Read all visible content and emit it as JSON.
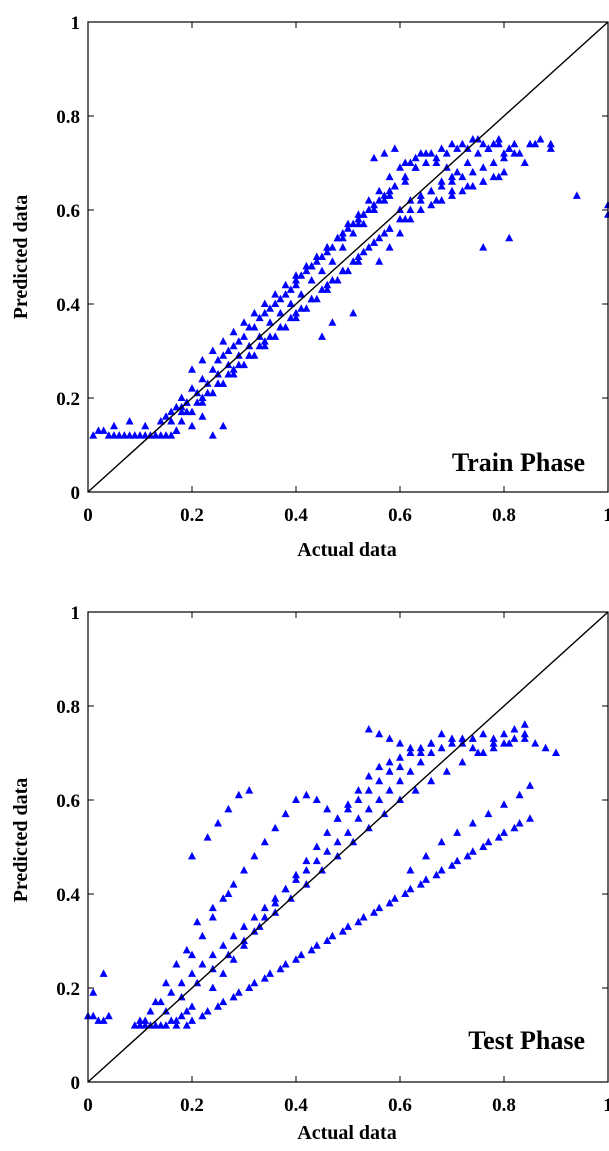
{
  "chart_data": [
    {
      "type": "scatter",
      "annotation": "Train Phase",
      "xlabel": "Actual data",
      "ylabel": "Predicted data",
      "xlim": [
        0,
        1
      ],
      "ylim": [
        0,
        1
      ],
      "xticks": [
        "0",
        "0.2",
        "0.4",
        "0.6",
        "0.8",
        "1"
      ],
      "yticks": [
        "0",
        "0.2",
        "0.4",
        "0.6",
        "0.8",
        "1"
      ],
      "marker": "triangle",
      "reference_line": [
        [
          0,
          0
        ],
        [
          1,
          1
        ]
      ],
      "colors": {
        "points": "#0000ff",
        "line": "#000000"
      },
      "grid": false,
      "series": [
        {
          "x": [
            0.01,
            0.02,
            0.03,
            0.04,
            0.05,
            0.06,
            0.07,
            0.08,
            0.09,
            0.1,
            0.11,
            0.12,
            0.13,
            0.14,
            0.15,
            0.16,
            0.05,
            0.08,
            0.11,
            0.14,
            0.15,
            0.16,
            0.17,
            0.17,
            0.18,
            0.18,
            0.19,
            0.2,
            0.2,
            0.21,
            0.22,
            0.22,
            0.23,
            0.24,
            0.24,
            0.25,
            0.26,
            0.26,
            0.27,
            0.28,
            0.28,
            0.29,
            0.3,
            0.3,
            0.31,
            0.32,
            0.32,
            0.33,
            0.34,
            0.34,
            0.35,
            0.36,
            0.36,
            0.37,
            0.38,
            0.38,
            0.39,
            0.4,
            0.4,
            0.41,
            0.42,
            0.42,
            0.43,
            0.44,
            0.44,
            0.45,
            0.46,
            0.46,
            0.47,
            0.48,
            0.48,
            0.49,
            0.5,
            0.5,
            0.51,
            0.52,
            0.52,
            0.53,
            0.54,
            0.54,
            0.55,
            0.56,
            0.56,
            0.57,
            0.58,
            0.58,
            0.59,
            0.6,
            0.6,
            0.61,
            0.62,
            0.62,
            0.63,
            0.64,
            0.64,
            0.65,
            0.66,
            0.66,
            0.67,
            0.68,
            0.68,
            0.69,
            0.7,
            0.7,
            0.71,
            0.72,
            0.73,
            0.74,
            0.75,
            0.76,
            0.77,
            0.78,
            0.79,
            0.8,
            0.81,
            0.82,
            0.6,
            0.62,
            0.64,
            0.66,
            0.68,
            0.7,
            0.72,
            0.74,
            0.76,
            0.78,
            0.8,
            0.82,
            0.55,
            0.57,
            0.59,
            0.61,
            0.63,
            0.65,
            0.67,
            0.69,
            0.71,
            0.73,
            0.75,
            0.77,
            0.79,
            0.81,
            0.83,
            0.85,
            0.87,
            0.89,
            0.2,
            0.22,
            0.24,
            0.26,
            0.28,
            0.3,
            0.32,
            0.34,
            0.36,
            0.38,
            0.4,
            0.42,
            0.44,
            0.46,
            0.48,
            0.5,
            0.52,
            0.54,
            0.56,
            0.58,
            0.22,
            0.25,
            0.28,
            0.31,
            0.34,
            0.37,
            0.4,
            0.43,
            0.46,
            0.49,
            0.52,
            0.55,
            0.58,
            0.61,
            0.64,
            0.67,
            0.7,
            0.73,
            0.76,
            0.79,
            0.25,
            0.27,
            0.29,
            0.31,
            0.33,
            0.35,
            0.37,
            0.39,
            0.41,
            0.43,
            0.45,
            0.47,
            0.49,
            0.51,
            0.53,
            0.55,
            0.57,
            0.59,
            0.61,
            0.63,
            0.19,
            0.21,
            0.23,
            0.25,
            0.27,
            0.29,
            0.31,
            0.33,
            0.35,
            0.37,
            0.39,
            0.41,
            0.43,
            0.45,
            0.47,
            0.49,
            0.51,
            0.53,
            0.55,
            0.57,
            0.56,
            0.58,
            0.6,
            0.62,
            0.64,
            0.66,
            0.68,
            0.7,
            0.72,
            0.74,
            0.76,
            0.78,
            0.8,
            0.84,
            0.86,
            0.89,
            0.94,
            1.0,
            1.0,
            0.81,
            0.76,
            0.53,
            0.45,
            0.47,
            0.51,
            0.18,
            0.2,
            0.22,
            0.24,
            0.26,
            0.16,
            0.17,
            0.18,
            0.19,
            0.4,
            0.43,
            0.46,
            0.49,
            0.52,
            0.55,
            0.58,
            0.61
          ],
          "y": [
            0.12,
            0.13,
            0.13,
            0.12,
            0.12,
            0.12,
            0.12,
            0.12,
            0.12,
            0.12,
            0.12,
            0.12,
            0.12,
            0.12,
            0.12,
            0.12,
            0.14,
            0.15,
            0.14,
            0.15,
            0.16,
            0.17,
            0.18,
            0.13,
            0.2,
            0.15,
            0.19,
            0.22,
            0.17,
            0.21,
            0.24,
            0.19,
            0.23,
            0.26,
            0.21,
            0.25,
            0.29,
            0.23,
            0.27,
            0.31,
            0.25,
            0.29,
            0.33,
            0.27,
            0.31,
            0.35,
            0.29,
            0.33,
            0.38,
            0.31,
            0.36,
            0.4,
            0.33,
            0.38,
            0.42,
            0.35,
            0.4,
            0.44,
            0.37,
            0.42,
            0.47,
            0.39,
            0.45,
            0.49,
            0.41,
            0.47,
            0.52,
            0.43,
            0.49,
            0.54,
            0.45,
            0.52,
            0.57,
            0.47,
            0.55,
            0.59,
            0.49,
            0.57,
            0.62,
            0.52,
            0.6,
            0.64,
            0.54,
            0.62,
            0.67,
            0.56,
            0.65,
            0.69,
            0.58,
            0.67,
            0.7,
            0.6,
            0.69,
            0.72,
            0.62,
            0.7,
            0.72,
            0.64,
            0.71,
            0.73,
            0.66,
            0.72,
            0.74,
            0.67,
            0.73,
            0.74,
            0.73,
            0.75,
            0.75,
            0.74,
            0.73,
            0.74,
            0.75,
            0.72,
            0.73,
            0.74,
            0.6,
            0.62,
            0.63,
            0.64,
            0.65,
            0.66,
            0.67,
            0.68,
            0.69,
            0.7,
            0.71,
            0.72,
            0.71,
            0.72,
            0.73,
            0.7,
            0.71,
            0.72,
            0.7,
            0.69,
            0.68,
            0.7,
            0.72,
            0.73,
            0.74,
            0.73,
            0.72,
            0.74,
            0.75,
            0.73,
            0.26,
            0.28,
            0.3,
            0.32,
            0.34,
            0.36,
            0.38,
            0.4,
            0.42,
            0.44,
            0.46,
            0.48,
            0.5,
            0.52,
            0.54,
            0.56,
            0.58,
            0.6,
            0.62,
            0.64,
            0.2,
            0.23,
            0.26,
            0.29,
            0.32,
            0.35,
            0.38,
            0.41,
            0.44,
            0.47,
            0.5,
            0.53,
            0.56,
            0.58,
            0.6,
            0.62,
            0.64,
            0.65,
            0.66,
            0.67,
            0.28,
            0.3,
            0.32,
            0.35,
            0.37,
            0.39,
            0.41,
            0.43,
            0.46,
            0.48,
            0.5,
            0.52,
            0.55,
            0.57,
            0.59,
            0.61,
            0.63,
            0.65,
            0.67,
            0.69,
            0.17,
            0.19,
            0.21,
            0.23,
            0.25,
            0.27,
            0.29,
            0.31,
            0.33,
            0.35,
            0.37,
            0.39,
            0.41,
            0.43,
            0.45,
            0.47,
            0.49,
            0.51,
            0.53,
            0.55,
            0.49,
            0.52,
            0.55,
            0.58,
            0.6,
            0.61,
            0.62,
            0.63,
            0.64,
            0.65,
            0.66,
            0.67,
            0.68,
            0.7,
            0.74,
            0.74,
            0.63,
            0.61,
            0.59,
            0.54,
            0.52,
            0.59,
            0.33,
            0.36,
            0.38,
            0.18,
            0.14,
            0.16,
            0.12,
            0.14,
            0.15,
            0.13,
            0.17,
            0.19,
            0.45,
            0.48,
            0.51,
            0.54,
            0.57,
            0.6,
            0.63,
            0.66
          ]
        }
      ]
    },
    {
      "type": "scatter",
      "annotation": "Test Phase",
      "xlabel": "Actual data",
      "ylabel": "Predicted data",
      "xlim": [
        0,
        1
      ],
      "ylim": [
        0,
        1
      ],
      "xticks": [
        "0",
        "0.2",
        "0.4",
        "0.6",
        "0.8",
        "1"
      ],
      "yticks": [
        "0",
        "0.2",
        "0.4",
        "0.6",
        "0.8",
        "1"
      ],
      "marker": "triangle",
      "reference_line": [
        [
          0,
          0
        ],
        [
          1,
          1
        ]
      ],
      "colors": {
        "points": "#0000ff",
        "line": "#000000"
      },
      "grid": false,
      "series": [
        {
          "x": [
            0.0,
            0.01,
            0.02,
            0.03,
            0.04,
            0.01,
            0.03,
            0.09,
            0.1,
            0.11,
            0.12,
            0.13,
            0.14,
            0.15,
            0.16,
            0.17,
            0.18,
            0.19,
            0.2,
            0.1,
            0.12,
            0.14,
            0.16,
            0.18,
            0.2,
            0.22,
            0.24,
            0.26,
            0.28,
            0.3,
            0.32,
            0.34,
            0.36,
            0.38,
            0.4,
            0.42,
            0.44,
            0.46,
            0.48,
            0.5,
            0.52,
            0.54,
            0.56,
            0.58,
            0.6,
            0.62,
            0.64,
            0.66,
            0.68,
            0.7,
            0.72,
            0.74,
            0.76,
            0.78,
            0.8,
            0.82,
            0.84,
            0.86,
            0.88,
            0.9,
            0.15,
            0.18,
            0.21,
            0.24,
            0.27,
            0.3,
            0.33,
            0.36,
            0.39,
            0.42,
            0.45,
            0.48,
            0.51,
            0.54,
            0.57,
            0.6,
            0.63,
            0.66,
            0.69,
            0.72,
            0.75,
            0.78,
            0.81,
            0.84,
            0.17,
            0.2,
            0.23,
            0.26,
            0.29,
            0.32,
            0.35,
            0.38,
            0.41,
            0.44,
            0.47,
            0.5,
            0.53,
            0.56,
            0.59,
            0.62,
            0.65,
            0.68,
            0.71,
            0.74,
            0.77,
            0.8,
            0.83,
            0.19,
            0.22,
            0.25,
            0.28,
            0.31,
            0.34,
            0.37,
            0.4,
            0.43,
            0.46,
            0.49,
            0.52,
            0.55,
            0.58,
            0.61,
            0.64,
            0.67,
            0.7,
            0.73,
            0.76,
            0.79,
            0.82,
            0.85,
            0.2,
            0.22,
            0.24,
            0.26,
            0.28,
            0.3,
            0.32,
            0.34,
            0.36,
            0.38,
            0.4,
            0.42,
            0.44,
            0.46,
            0.48,
            0.5,
            0.52,
            0.54,
            0.56,
            0.58,
            0.6,
            0.24,
            0.26,
            0.28,
            0.3,
            0.32,
            0.34,
            0.36,
            0.38,
            0.4,
            0.42,
            0.44,
            0.46,
            0.48,
            0.5,
            0.52,
            0.54,
            0.56,
            0.58,
            0.6,
            0.62,
            0.64,
            0.66,
            0.54,
            0.56,
            0.58,
            0.6,
            0.62,
            0.64,
            0.66,
            0.68,
            0.7,
            0.72,
            0.74,
            0.76,
            0.78,
            0.8,
            0.82,
            0.84,
            0.2,
            0.23,
            0.25,
            0.27,
            0.29,
            0.31,
            0.11,
            0.13,
            0.15,
            0.17,
            0.19,
            0.62,
            0.65,
            0.68,
            0.71,
            0.74,
            0.77,
            0.8,
            0.83,
            0.85,
            0.21,
            0.24,
            0.27
          ],
          "y": [
            0.14,
            0.14,
            0.13,
            0.13,
            0.14,
            0.19,
            0.23,
            0.12,
            0.12,
            0.12,
            0.12,
            0.12,
            0.12,
            0.12,
            0.13,
            0.13,
            0.14,
            0.15,
            0.16,
            0.13,
            0.15,
            0.17,
            0.19,
            0.21,
            0.23,
            0.25,
            0.27,
            0.29,
            0.31,
            0.33,
            0.35,
            0.37,
            0.39,
            0.41,
            0.43,
            0.45,
            0.47,
            0.49,
            0.51,
            0.53,
            0.56,
            0.58,
            0.6,
            0.62,
            0.64,
            0.66,
            0.68,
            0.7,
            0.71,
            0.72,
            0.73,
            0.73,
            0.74,
            0.73,
            0.72,
            0.73,
            0.74,
            0.72,
            0.71,
            0.7,
            0.15,
            0.18,
            0.21,
            0.24,
            0.27,
            0.3,
            0.33,
            0.36,
            0.39,
            0.42,
            0.45,
            0.48,
            0.51,
            0.54,
            0.57,
            0.6,
            0.62,
            0.64,
            0.66,
            0.68,
            0.7,
            0.71,
            0.72,
            0.73,
            0.12,
            0.13,
            0.15,
            0.17,
            0.19,
            0.21,
            0.23,
            0.25,
            0.27,
            0.29,
            0.31,
            0.33,
            0.35,
            0.37,
            0.39,
            0.41,
            0.43,
            0.45,
            0.47,
            0.49,
            0.51,
            0.53,
            0.55,
            0.12,
            0.14,
            0.16,
            0.18,
            0.2,
            0.22,
            0.24,
            0.26,
            0.28,
            0.3,
            0.32,
            0.34,
            0.36,
            0.38,
            0.4,
            0.42,
            0.44,
            0.46,
            0.48,
            0.5,
            0.52,
            0.54,
            0.56,
            0.27,
            0.31,
            0.35,
            0.39,
            0.42,
            0.45,
            0.48,
            0.51,
            0.54,
            0.57,
            0.6,
            0.61,
            0.6,
            0.58,
            0.56,
            0.58,
            0.6,
            0.62,
            0.64,
            0.66,
            0.67,
            0.2,
            0.23,
            0.26,
            0.29,
            0.32,
            0.35,
            0.38,
            0.41,
            0.44,
            0.47,
            0.5,
            0.53,
            0.56,
            0.59,
            0.62,
            0.65,
            0.67,
            0.68,
            0.69,
            0.7,
            0.71,
            0.72,
            0.75,
            0.74,
            0.73,
            0.72,
            0.71,
            0.7,
            0.72,
            0.74,
            0.73,
            0.72,
            0.71,
            0.7,
            0.72,
            0.74,
            0.75,
            0.76,
            0.48,
            0.52,
            0.55,
            0.58,
            0.61,
            0.62,
            0.13,
            0.17,
            0.21,
            0.25,
            0.28,
            0.45,
            0.48,
            0.51,
            0.53,
            0.55,
            0.57,
            0.59,
            0.61,
            0.63,
            0.34,
            0.37,
            0.4
          ]
        }
      ]
    }
  ]
}
